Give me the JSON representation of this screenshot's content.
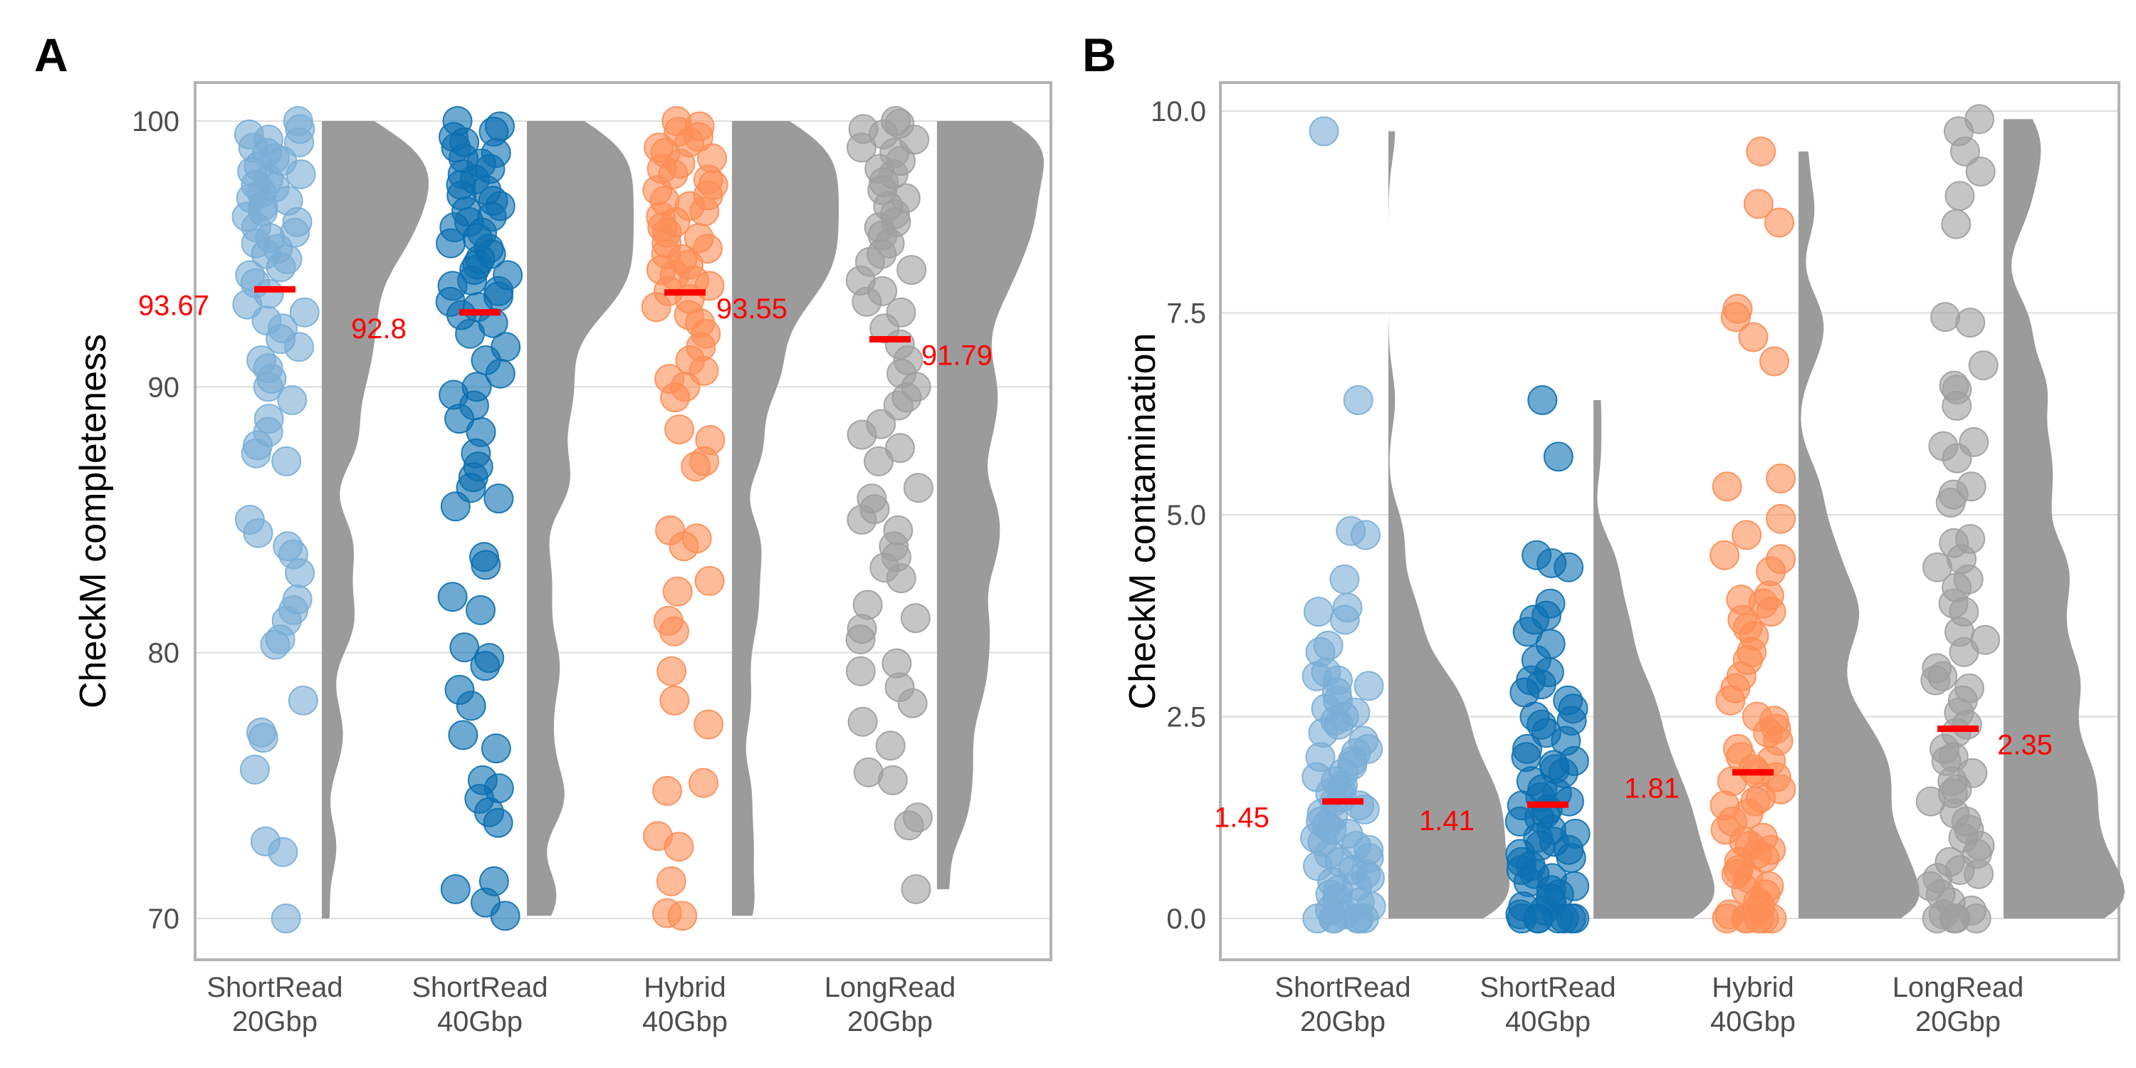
{
  "figure": {
    "panel_tags": [
      "A",
      "B"
    ],
    "colors": {
      "ShortRead 20Gbp": "#79aed6",
      "ShortRead 40Gbp": "#0b6fb0",
      "Hybrid 40Gbp": "#fd8d55",
      "LongRead 20Gbp": "#9e9e9e",
      "density": "#9b9b9b",
      "median": "#ff0000",
      "grid": "#dedede",
      "frame": "#b3b3b3"
    }
  },
  "chart_data": [
    {
      "type": "scatter",
      "subtype": "raincloud (jittered points + half-violin density + median bar)",
      "panel": "A",
      "title": "",
      "ylabel": "CheckM completeness",
      "xlabel": "",
      "ylim": [
        70,
        100
      ],
      "yticks": [
        "70",
        "80",
        "90",
        "100"
      ],
      "grid": true,
      "categories": [
        {
          "line1": "ShortRead",
          "line2": "20Gbp"
        },
        {
          "line1": "ShortRead",
          "line2": "40Gbp"
        },
        {
          "line1": "Hybrid",
          "line2": "40Gbp"
        },
        {
          "line1": "LongRead",
          "line2": "20Gbp"
        }
      ],
      "medians": [
        93.67,
        92.8,
        93.55,
        91.79
      ],
      "median_labels": [
        "93.67",
        "92.8",
        "93.55",
        "91.79"
      ],
      "series": [
        {
          "values": [
            100,
            99.7,
            99.5,
            99.3,
            99.2,
            99,
            98.8,
            98.6,
            98.5,
            98.3,
            98.1,
            98,
            97.8,
            97.6,
            97.5,
            97.3,
            97.1,
            97,
            96.8,
            96.6,
            96.4,
            96.2,
            96,
            95.8,
            95.6,
            95.4,
            95.2,
            95,
            94.8,
            94.5,
            94.2,
            93.9,
            93.5,
            93.1,
            92.8,
            92.5,
            92.2,
            91.8,
            91.5,
            91,
            90.7,
            90.3,
            90,
            89.5,
            88.8,
            88.3,
            87.8,
            87.5,
            87.2,
            85,
            84.5,
            84,
            83.7,
            83,
            82,
            81.6,
            81.2,
            80.5,
            80.3,
            78.2,
            77,
            76.8,
            75.6,
            72.9,
            72.5,
            70
          ]
        },
        {
          "values": [
            100,
            99.8,
            99.6,
            99.4,
            99.2,
            99,
            98.8,
            98.6,
            98.4,
            98.2,
            98,
            97.8,
            97.6,
            97.4,
            97.2,
            97,
            96.8,
            96.6,
            96.4,
            96.2,
            96,
            95.8,
            95.6,
            95.4,
            95.2,
            95,
            94.8,
            94.6,
            94.4,
            94.2,
            94,
            93.8,
            93.6,
            93.4,
            93.2,
            93,
            92.7,
            92.4,
            92,
            91.5,
            91,
            90.5,
            90,
            89.7,
            89.3,
            88.8,
            88.3,
            87.5,
            87,
            86.6,
            86.2,
            85.8,
            85.5,
            83.6,
            83.3,
            82.1,
            81.6,
            80.2,
            79.8,
            79.5,
            78.6,
            78,
            76.9,
            76.4,
            75.2,
            74.9,
            74.5,
            74,
            73.6,
            71.4,
            71.1,
            70.6,
            70.1
          ]
        },
        {
          "values": [
            100,
            99.8,
            99.6,
            99.4,
            99.2,
            99,
            98.8,
            98.6,
            98.4,
            98.2,
            98,
            97.8,
            97.6,
            97.4,
            97.2,
            97,
            96.8,
            96.6,
            96.4,
            96.2,
            96,
            95.8,
            95.6,
            95.4,
            95.2,
            95,
            94.8,
            94.6,
            94.4,
            94.2,
            94,
            93.8,
            93.6,
            93.3,
            93,
            92.7,
            92.4,
            92,
            91.5,
            91,
            90.6,
            90.3,
            90,
            89.6,
            88.4,
            88,
            87.2,
            87,
            84.6,
            84.3,
            84,
            82.7,
            82.3,
            81.2,
            80.8,
            79.3,
            78.2,
            77.3,
            75.1,
            74.8,
            73.1,
            72.7,
            71.4,
            70.2,
            70.1
          ]
        },
        {
          "values": [
            100,
            99.9,
            99.7,
            99.5,
            99.3,
            99,
            98.8,
            98.5,
            98.2,
            98,
            97.7,
            97.4,
            97.1,
            96.8,
            96.5,
            96.2,
            96,
            95.7,
            95.4,
            95,
            94.7,
            94.4,
            94,
            93.6,
            93.2,
            92.8,
            92.2,
            91.6,
            91,
            90.5,
            90,
            89.6,
            89.3,
            88.6,
            88.2,
            87.7,
            87.2,
            86.2,
            85.8,
            85.4,
            85,
            84.6,
            84,
            83.6,
            83.2,
            82.8,
            81.8,
            81.3,
            80.9,
            80.5,
            79.6,
            79.3,
            78.7,
            78.1,
            77.4,
            76.5,
            75.5,
            75.2,
            73.8,
            73.5,
            71.1
          ]
        }
      ],
      "density_max": [
        98.3,
        98.2,
        98.3,
        98.1
      ]
    },
    {
      "type": "scatter",
      "subtype": "raincloud (jittered points + half-violin density + median bar)",
      "panel": "B",
      "title": "",
      "ylabel": "CheckM contamination",
      "xlabel": "",
      "ylim": [
        0,
        10
      ],
      "yticks": [
        "0.0",
        "2.5",
        "5.0",
        "7.5",
        "10.0"
      ],
      "grid": true,
      "categories": [
        {
          "line1": "ShortRead",
          "line2": "20Gbp"
        },
        {
          "line1": "ShortRead",
          "line2": "40Gbp"
        },
        {
          "line1": "Hybrid",
          "line2": "40Gbp"
        },
        {
          "line1": "LongRead",
          "line2": "20Gbp"
        }
      ],
      "medians": [
        1.45,
        1.41,
        1.81,
        2.35
      ],
      "median_labels": [
        "1.45",
        "1.41",
        "1.81",
        "2.35"
      ],
      "series": [
        {
          "values": [
            9.75,
            6.42,
            4.8,
            4.75,
            4.2,
            3.85,
            3.8,
            3.7,
            3.38,
            3.3,
            3.05,
            3,
            2.95,
            2.88,
            2.8,
            2.7,
            2.6,
            2.55,
            2.5,
            2.45,
            2.4,
            2.3,
            2.2,
            2.1,
            2.05,
            2,
            1.95,
            1.9,
            1.8,
            1.75,
            1.7,
            1.65,
            1.6,
            1.55,
            1.5,
            1.45,
            1.4,
            1.35,
            1.3,
            1.25,
            1.2,
            1.15,
            1.1,
            1.05,
            1,
            0.95,
            0.9,
            0.85,
            0.8,
            0.75,
            0.7,
            0.65,
            0.6,
            0.55,
            0.5,
            0.45,
            0.4,
            0.35,
            0.3,
            0.25,
            0.2,
            0.15,
            0.1,
            0.05,
            0,
            0,
            0,
            0,
            0,
            0
          ]
        },
        {
          "values": [
            6.42,
            5.72,
            4.5,
            4.4,
            4.35,
            3.9,
            3.75,
            3.7,
            3.55,
            3.4,
            3.2,
            3.05,
            2.95,
            2.9,
            2.8,
            2.7,
            2.6,
            2.5,
            2.45,
            2.4,
            2.3,
            2.2,
            2.1,
            2,
            1.95,
            1.9,
            1.85,
            1.8,
            1.7,
            1.6,
            1.55,
            1.5,
            1.45,
            1.4,
            1.35,
            1.3,
            1.25,
            1.2,
            1.1,
            1.05,
            1,
            0.95,
            0.9,
            0.85,
            0.8,
            0.75,
            0.7,
            0.65,
            0.6,
            0.55,
            0.5,
            0.45,
            0.4,
            0.35,
            0.3,
            0.25,
            0.2,
            0.15,
            0.1,
            0.05,
            0,
            0,
            0,
            0,
            0,
            0,
            0
          ]
        },
        {
          "values": [
            9.5,
            8.85,
            8.62,
            7.55,
            7.45,
            7.2,
            6.9,
            5.45,
            5.35,
            4.95,
            4.75,
            4.5,
            4.45,
            4.3,
            4,
            3.95,
            3.9,
            3.8,
            3.7,
            3.6,
            3.5,
            3.3,
            3.2,
            3,
            2.85,
            2.7,
            2.5,
            2.45,
            2.35,
            2.3,
            2.2,
            2.1,
            2,
            1.95,
            1.85,
            1.8,
            1.75,
            1.7,
            1.6,
            1.5,
            1.45,
            1.4,
            1.3,
            1.2,
            1.1,
            1,
            0.95,
            0.9,
            0.85,
            0.8,
            0.75,
            0.7,
            0.6,
            0.55,
            0.5,
            0.4,
            0.35,
            0.3,
            0.2,
            0.15,
            0.1,
            0.05,
            0,
            0,
            0,
            0,
            0,
            0
          ]
        },
        {
          "values": [
            9.9,
            9.75,
            9.5,
            9.25,
            8.95,
            8.6,
            7.45,
            7.38,
            6.85,
            6.6,
            6.55,
            6.35,
            5.9,
            5.85,
            5.7,
            5.35,
            5.25,
            5.15,
            4.7,
            4.65,
            4.45,
            4.35,
            4.2,
            4.1,
            3.9,
            3.8,
            3.55,
            3.45,
            3.3,
            3.1,
            3,
            2.95,
            2.85,
            2.7,
            2.55,
            2.4,
            2.3,
            2.1,
            2,
            1.95,
            1.8,
            1.7,
            1.6,
            1.55,
            1.45,
            1.3,
            1.2,
            1.1,
            1,
            0.9,
            0.8,
            0.7,
            0.6,
            0.55,
            0.5,
            0.4,
            0.3,
            0.2,
            0.1,
            0.05,
            0,
            0,
            0,
            0
          ]
        }
      ],
      "density_max": [
        0.25,
        0.15,
        0.2,
        0.5
      ]
    }
  ]
}
